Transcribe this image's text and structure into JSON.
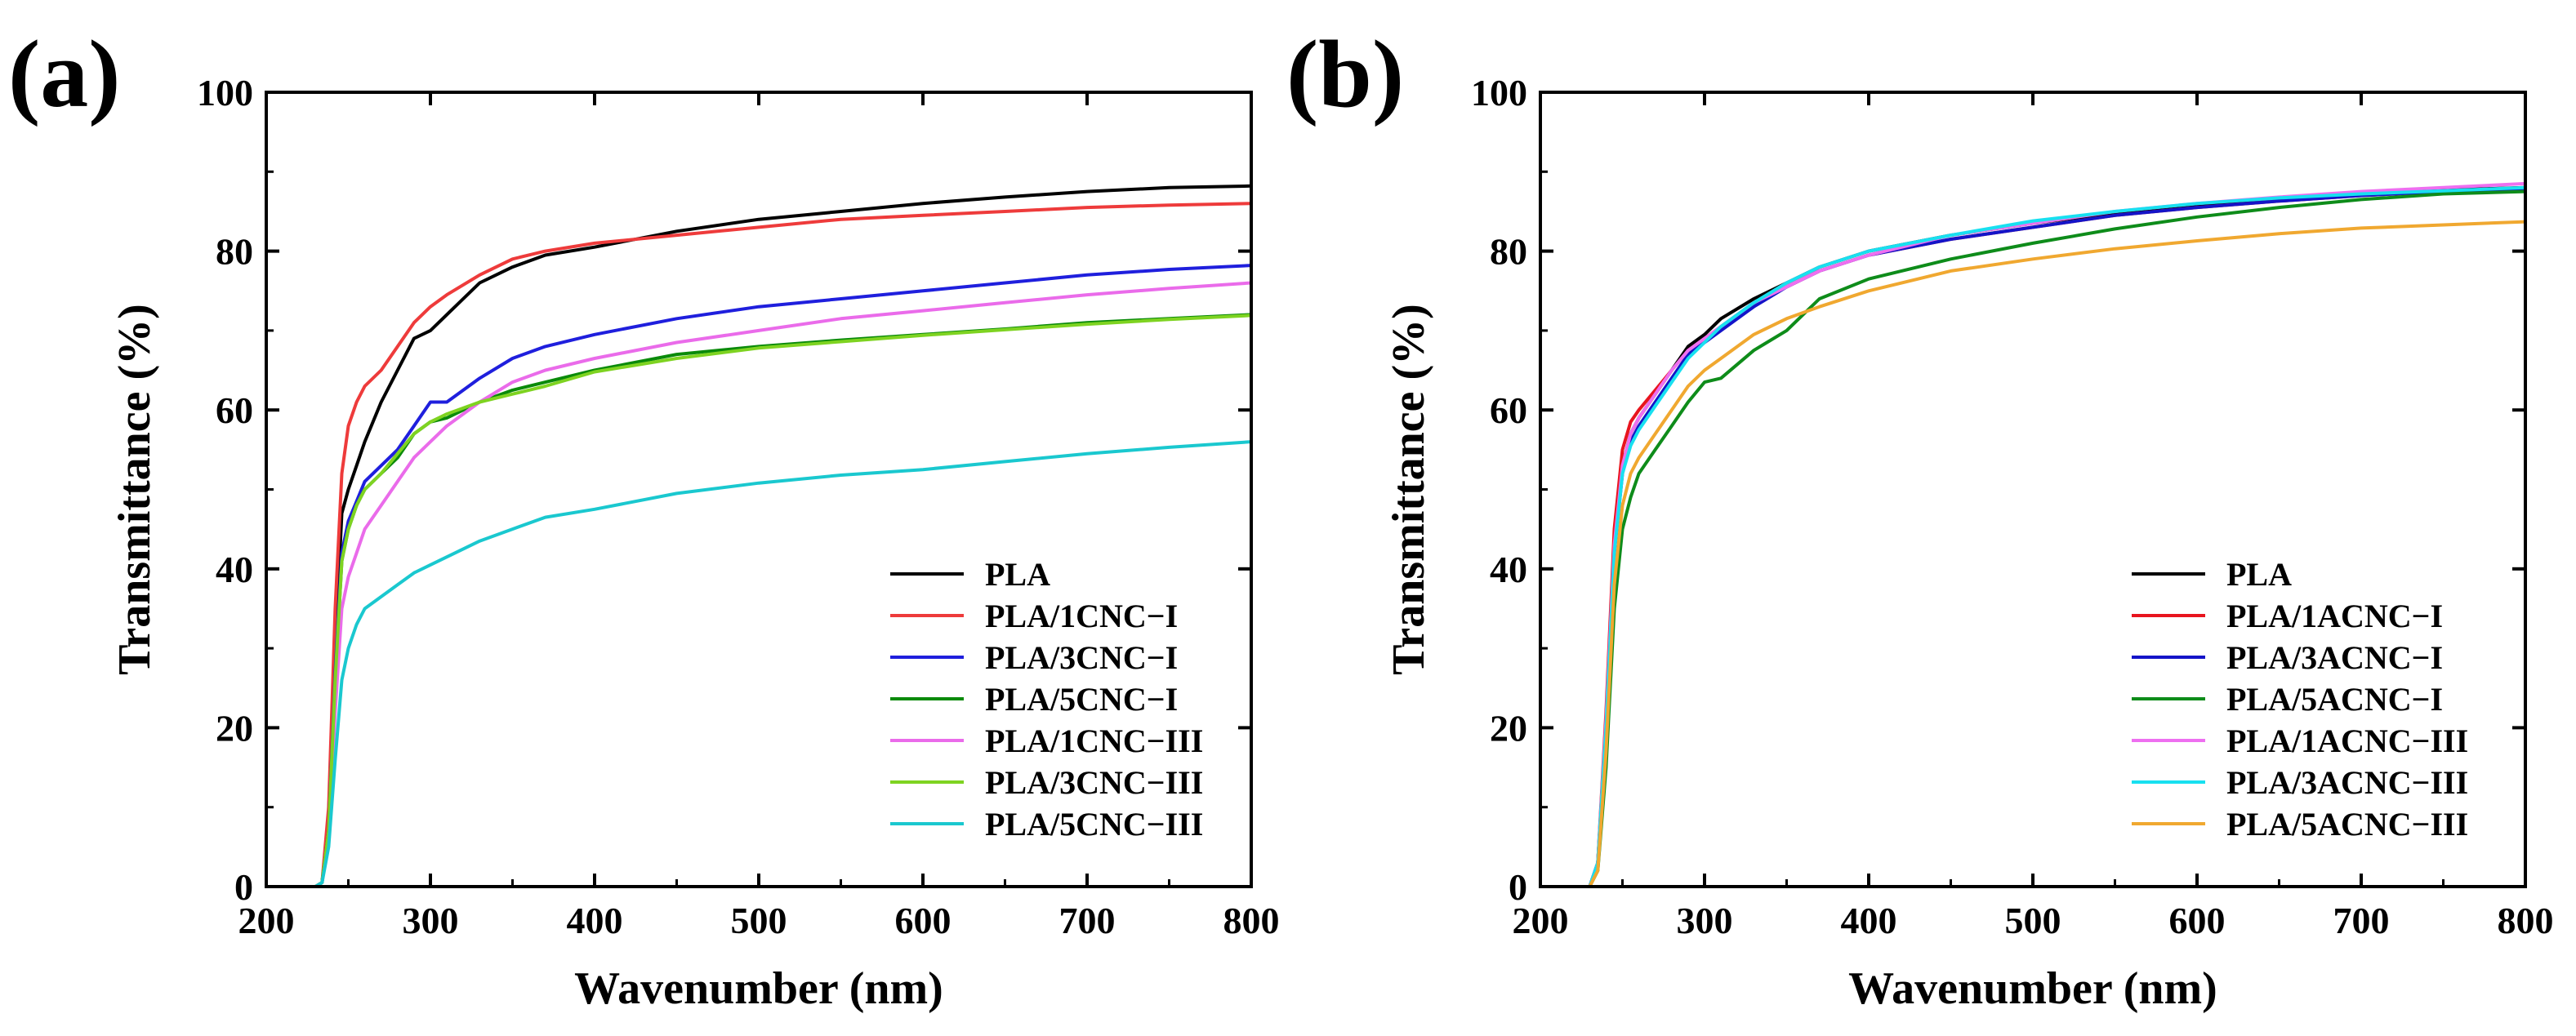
{
  "chart_data": [
    {
      "panel_label": "(a)",
      "type": "line",
      "xlabel": "Wavenumber (nm)",
      "ylabel": "Transmittance (%)",
      "xlim": [
        200,
        800
      ],
      "ylim": [
        0,
        100
      ],
      "xticks": [
        200,
        300,
        400,
        500,
        600,
        700,
        800
      ],
      "yticks": [
        0,
        20,
        40,
        60,
        80,
        100
      ],
      "legend_position": "bottom-right",
      "x": [
        200,
        230,
        234,
        238,
        242,
        246,
        250,
        255,
        260,
        270,
        280,
        290,
        300,
        310,
        330,
        350,
        370,
        400,
        450,
        500,
        550,
        600,
        650,
        700,
        750,
        800
      ],
      "series": [
        {
          "name": "PLA",
          "color": "#000000",
          "values": [
            0,
            0,
            0.5,
            8,
            30,
            47,
            50,
            53,
            56,
            61,
            65,
            69,
            70,
            72,
            76,
            78,
            79.5,
            80.5,
            82.5,
            84,
            85,
            86,
            86.8,
            87.5,
            88,
            88.2
          ]
        },
        {
          "name": "PLA/1CNC−I",
          "color": "#ee3b3b",
          "values": [
            0,
            0,
            0.5,
            10,
            35,
            52,
            58,
            61,
            63,
            65,
            68,
            71,
            73,
            74.5,
            77,
            79,
            80,
            81,
            82,
            83,
            84,
            84.5,
            85,
            85.5,
            85.8,
            86
          ]
        },
        {
          "name": "PLA/3CNC−I",
          "color": "#1f1fdd",
          "values": [
            0,
            0,
            0.5,
            7,
            27,
            42,
            46,
            48.5,
            51,
            53,
            55,
            58,
            61,
            61,
            64,
            66.5,
            68,
            69.5,
            71.5,
            73,
            74,
            75,
            76,
            77,
            77.7,
            78.2
          ]
        },
        {
          "name": "PLA/5CNC−I",
          "color": "#0a8a0a",
          "values": [
            0,
            0,
            0.5,
            7,
            26,
            41,
            45,
            48,
            50,
            52,
            54,
            57,
            58.5,
            59,
            61,
            62.5,
            63.5,
            65,
            67,
            68,
            68.8,
            69.5,
            70.2,
            71,
            71.5,
            72
          ]
        },
        {
          "name": "PLA/1CNC−III",
          "color": "#ea6bea",
          "values": [
            0,
            0,
            0.5,
            6,
            22,
            35,
            39,
            42,
            45,
            48,
            51,
            54,
            56,
            58,
            61,
            63.5,
            65,
            66.5,
            68.5,
            70,
            71.5,
            72.5,
            73.5,
            74.5,
            75.3,
            76
          ]
        },
        {
          "name": "PLA/3CNC−III",
          "color": "#7ed321",
          "values": [
            0,
            0,
            0.5,
            7,
            26,
            41,
            45,
            48,
            50,
            52,
            54.5,
            57,
            58.5,
            59.5,
            61,
            62,
            63,
            64.8,
            66.5,
            67.8,
            68.6,
            69.4,
            70.1,
            70.8,
            71.4,
            71.9
          ]
        },
        {
          "name": "PLA/5CNC−III",
          "color": "#1ac8cf",
          "values": [
            0,
            0,
            0.5,
            5,
            16,
            26,
            30,
            33,
            35,
            36.5,
            38,
            39.5,
            40.5,
            41.5,
            43.5,
            45,
            46.5,
            47.5,
            49.5,
            50.8,
            51.8,
            52.5,
            53.5,
            54.5,
            55.3,
            56
          ]
        }
      ]
    },
    {
      "panel_label": "(b)",
      "type": "line",
      "xlabel": "Wavenumber (nm)",
      "ylabel": "Transmittance (%)",
      "xlim": [
        200,
        800
      ],
      "ylim": [
        0,
        100
      ],
      "xticks": [
        200,
        300,
        400,
        500,
        600,
        700,
        800
      ],
      "yticks": [
        0,
        20,
        40,
        60,
        80,
        100
      ],
      "legend_position": "bottom-right",
      "x": [
        200,
        225,
        230,
        235,
        240,
        245,
        250,
        255,
        260,
        270,
        280,
        290,
        300,
        310,
        330,
        350,
        370,
        400,
        450,
        500,
        550,
        600,
        650,
        700,
        750,
        800
      ],
      "series": [
        {
          "name": "PLA",
          "color": "#000000",
          "values": [
            0,
            0,
            0,
            3,
            20,
            42,
            53,
            57,
            59,
            62,
            65,
            68,
            69.5,
            71.5,
            74,
            76,
            78,
            80,
            82,
            83.5,
            84.8,
            85.8,
            86.5,
            87.2,
            87.7,
            88
          ]
        },
        {
          "name": "PLA/1ACNC−I",
          "color": "#e8141e",
          "values": [
            0,
            0,
            0,
            3,
            22,
            45,
            55,
            58.5,
            60,
            62.5,
            65,
            67.5,
            69,
            70.5,
            73.5,
            75.5,
            77.5,
            79.5,
            81.5,
            83,
            84.5,
            85.5,
            86.3,
            87,
            87.5,
            87.8
          ]
        },
        {
          "name": "PLA/3ACNC−I",
          "color": "#1414c8",
          "values": [
            0,
            0,
            0,
            3,
            20,
            42,
            52,
            56,
            58,
            61,
            64,
            67,
            68.5,
            70,
            73,
            75.5,
            77.5,
            79.5,
            81.5,
            83,
            84.5,
            85.5,
            86.3,
            87,
            87.5,
            87.8
          ]
        },
        {
          "name": "PLA/5ACNC−I",
          "color": "#0e8c1a",
          "values": [
            0,
            0,
            0,
            2,
            15,
            35,
            45,
            49,
            52,
            55,
            58,
            61,
            63.5,
            64,
            67.5,
            70,
            74,
            76.5,
            79,
            81,
            82.8,
            84.3,
            85.5,
            86.5,
            87.2,
            87.5
          ]
        },
        {
          "name": "PLA/1ACNC−III",
          "color": "#ee6ff0",
          "values": [
            0,
            0,
            0,
            3,
            21,
            43,
            53,
            57,
            59,
            62,
            65,
            67.5,
            69,
            70.5,
            73.5,
            75.5,
            77.5,
            79.5,
            82,
            83.5,
            85,
            86,
            86.8,
            87.5,
            88,
            88.5
          ]
        },
        {
          "name": "PLA/3ACNC−III",
          "color": "#18e0f0",
          "values": [
            0,
            0,
            0,
            3,
            20,
            42,
            52,
            55.5,
            57.5,
            60.5,
            63.5,
            66.5,
            68.5,
            70.5,
            73.5,
            76,
            78,
            80,
            82,
            83.8,
            85,
            86,
            86.7,
            87.2,
            87.6,
            88
          ]
        },
        {
          "name": "PLA/5ACNC−III",
          "color": "#f0a830",
          "values": [
            0,
            0,
            0,
            2,
            17,
            38,
            48,
            52,
            54,
            57,
            60,
            63,
            65,
            66.5,
            69.5,
            71.5,
            73,
            75,
            77.5,
            79,
            80.3,
            81.3,
            82.2,
            82.9,
            83.3,
            83.7
          ]
        }
      ]
    }
  ]
}
